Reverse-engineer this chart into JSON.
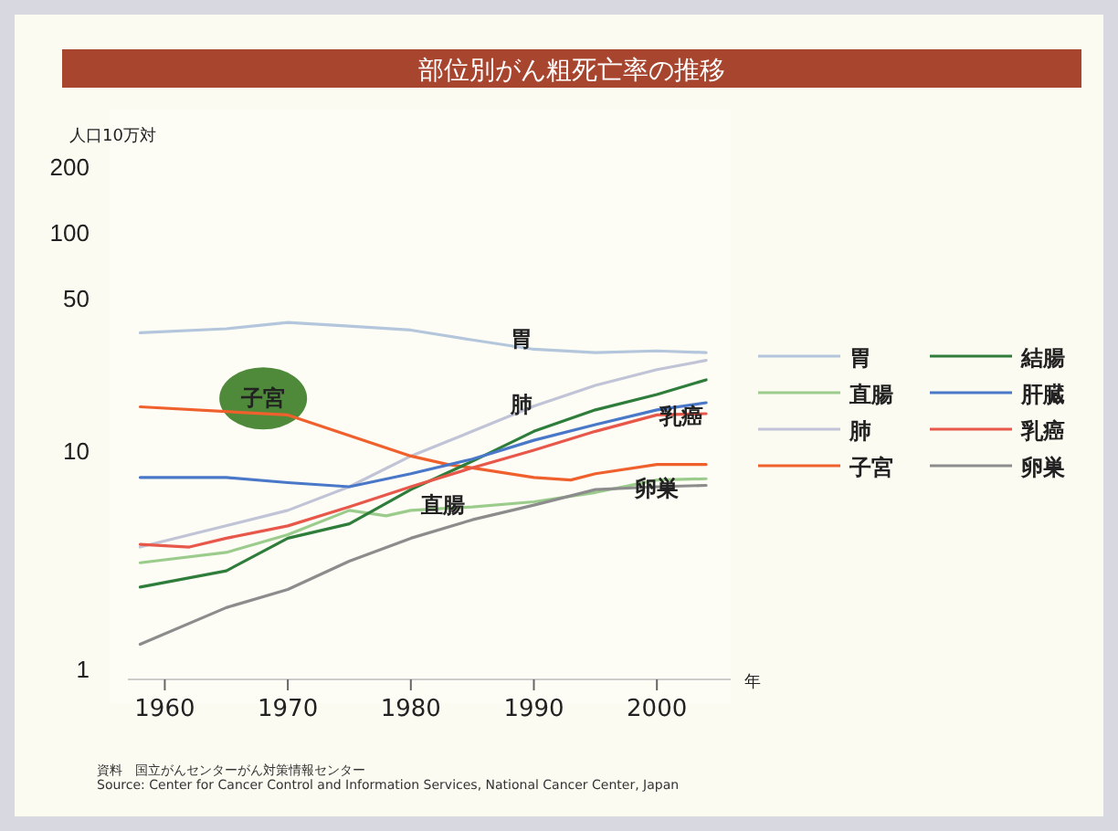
{
  "chart_data": {
    "type": "line",
    "title": "部位別がん粗死亡率の推移",
    "ylabel": "人口10万対",
    "xlabel": "年",
    "log": true,
    "ylim": [
      1,
      200
    ],
    "yticks": [
      1,
      10,
      50,
      100,
      200
    ],
    "xlim": [
      1957,
      2006
    ],
    "xticks": [
      1960,
      1970,
      1980,
      1990,
      2000
    ],
    "legend": "right",
    "grid": false,
    "series": [
      {
        "name": "胃",
        "color": "#b4c6dc",
        "x": [
          1958,
          1965,
          1970,
          1975,
          1980,
          1985,
          1990,
          1995,
          2000,
          2004
        ],
        "values": [
          34.5,
          36,
          38.5,
          37,
          35.5,
          32,
          29,
          28,
          28.5,
          28
        ]
      },
      {
        "name": "直腸",
        "color": "#9ccc8c",
        "x": [
          1958,
          1965,
          1970,
          1975,
          1978,
          1980,
          1985,
          1990,
          1995,
          2000,
          2004
        ],
        "values": [
          3.05,
          3.4,
          4.1,
          5.3,
          5.0,
          5.3,
          5.5,
          5.8,
          6.4,
          7.3,
          7.4
        ]
      },
      {
        "name": "肺",
        "color": "#c0c4d6",
        "x": [
          1958,
          1970,
          1975,
          1980,
          1985,
          1990,
          1995,
          2000,
          2004
        ],
        "values": [
          3.6,
          5.3,
          6.8,
          9.4,
          12.2,
          15.9,
          19.8,
          23.4,
          25.8
        ]
      },
      {
        "name": "子宮",
        "color": "#f0602c",
        "x": [
          1958,
          1970,
          1980,
          1983,
          1985,
          1990,
          1993,
          1995,
          2000,
          2004
        ],
        "values": [
          15.8,
          14.5,
          9.4,
          8.6,
          8.3,
          7.5,
          7.3,
          7.8,
          8.6,
          8.6
        ]
      },
      {
        "name": "結腸",
        "color": "#2e7d3a",
        "x": [
          1958,
          1965,
          1970,
          1975,
          1980,
          1985,
          1990,
          1995,
          2000,
          2004
        ],
        "values": [
          2.36,
          2.8,
          3.95,
          4.6,
          6.6,
          8.9,
          12.2,
          15.3,
          18,
          21
        ]
      },
      {
        "name": "肝臓",
        "color": "#4a78c8",
        "x": [
          1958,
          1965,
          1970,
          1975,
          1980,
          1985,
          1990,
          1995,
          2000,
          2004
        ],
        "values": [
          7.5,
          7.5,
          7.1,
          6.8,
          7.8,
          9.1,
          11.1,
          13.1,
          15.3,
          16.5
        ]
      },
      {
        "name": "乳癌",
        "color": "#e8584a",
        "x": [
          1958,
          1962,
          1965,
          1970,
          1975,
          1980,
          1985,
          1990,
          1995,
          2000,
          2004
        ],
        "values": [
          3.7,
          3.6,
          3.95,
          4.5,
          5.5,
          6.8,
          8.3,
          10,
          12.2,
          14.5,
          14.7
        ]
      },
      {
        "name": "卵巣",
        "color": "#8c8c8c",
        "x": [
          1958,
          1965,
          1970,
          1975,
          1980,
          1985,
          1990,
          1995,
          2000,
          2004
        ],
        "values": [
          1.29,
          1.9,
          2.3,
          3.1,
          3.95,
          4.8,
          5.6,
          6.6,
          6.8,
          6.9
        ]
      }
    ],
    "annotations": [
      {
        "text": "胃",
        "x": 1989,
        "y": 33
      },
      {
        "text": "肺",
        "x": 1989,
        "y": 16.5
      },
      {
        "text": "直腸",
        "x": 1982.6,
        "y": 5.7
      },
      {
        "text": "乳癌",
        "x": 2002,
        "y": 14.6
      },
      {
        "text": "卵巣",
        "x": 2000,
        "y": 6.8
      },
      {
        "text": "子宮",
        "x": 1968,
        "y": 14.8
      },
      "資料　国立がんセンターがん対策情報センター",
      "Source: Center for Cancer Control and Information Services, National Cancer Center, Japan"
    ]
  }
}
